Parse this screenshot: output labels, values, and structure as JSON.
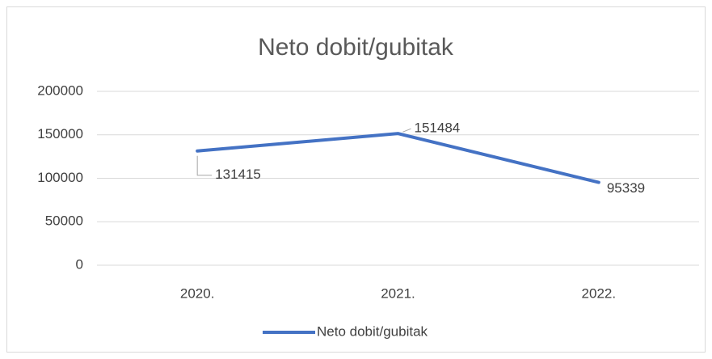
{
  "chart_data": {
    "type": "line",
    "title": "Neto dobit/gubitak",
    "categories": [
      "2020.",
      "2021.",
      "2022."
    ],
    "series": [
      {
        "name": "Neto dobit/gubitak",
        "color": "#4472c4",
        "values": [
          131415,
          151484,
          95339
        ]
      }
    ],
    "ylim": [
      0,
      200000
    ],
    "yticks": [
      0,
      50000,
      100000,
      150000,
      200000
    ],
    "grid": true,
    "legend": "bottom"
  }
}
